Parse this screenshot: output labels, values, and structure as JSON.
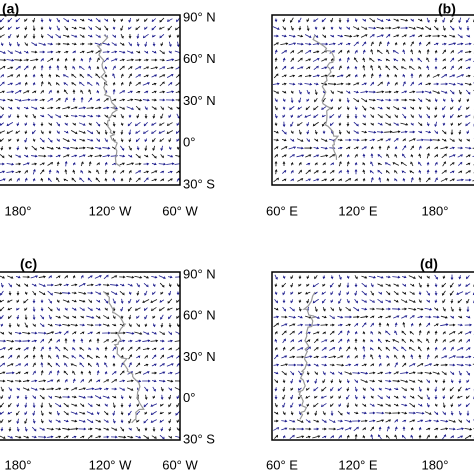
{
  "panels": [
    {
      "label": "(a)",
      "lat_ticks": [
        "90° N",
        "60° N",
        "30° N",
        "0°",
        "30° S"
      ],
      "lon_ticks": [
        "180°",
        "120° W",
        "60° W"
      ]
    },
    {
      "label": "(b)",
      "lat_ticks": [],
      "lon_ticks": [
        "60° E",
        "120° E",
        "180°"
      ]
    },
    {
      "label": "(c)",
      "lat_ticks": [
        "90° N",
        "60° N",
        "30° N",
        "0°",
        "30° S"
      ],
      "lon_ticks": [
        "180°",
        "120° W",
        "60° W"
      ]
    },
    {
      "label": "(d)",
      "lat_ticks": [],
      "lon_ticks": [
        "60° E",
        "120° E",
        "180°"
      ]
    }
  ]
}
